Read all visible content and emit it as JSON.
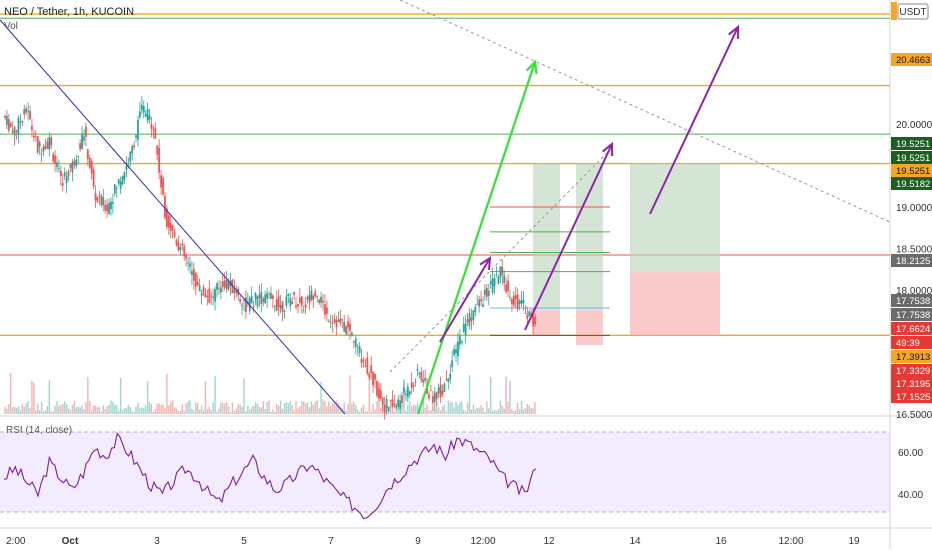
{
  "header": {
    "symbol_title": "NEO / Tether, 1h, KUCOIN",
    "volume_label": "Vol"
  },
  "rsi": {
    "label": "RSI (14, close)"
  },
  "colors": {
    "up": "#26a69a",
    "down": "#ef5350",
    "rsi_line": "#7b1fa2",
    "rsi_band": "#e9dcff",
    "blue_trend": "#2b2bd6",
    "orange_level": "#f5a623",
    "green_arrow": "#33e233",
    "purple_arrow": "#8e24aa"
  },
  "chart_data": [
    {
      "type": "candlestick",
      "title": "NEO / Tether, 1h, KUCOIN",
      "quote_currency": "USDT",
      "ylim": [
        16.5,
        21.5
      ],
      "y_ticks": [
        16.5,
        17.0,
        17.5,
        18.0,
        18.5,
        19.0,
        19.5,
        20.0,
        20.5,
        21.0
      ],
      "y_tick_labels": [
        "16.5000",
        "",
        "",
        "18.0000",
        "18.5000",
        "19.0000",
        "",
        "20.0000",
        "",
        ""
      ],
      "x_tick_labels": [
        "2:00",
        "Oct",
        "3",
        "5",
        "7",
        "9",
        "12:00",
        "12",
        "14",
        "16",
        "12:00",
        "19"
      ],
      "last_price": 17.6624,
      "countdown": "49:39",
      "price_labels": [
        {
          "value": 20.4663,
          "text": "20.4663",
          "kind": "orange"
        },
        {
          "value": 19.5251,
          "text": "19.5251",
          "kind": "dark-green"
        },
        {
          "value": 19.5251,
          "text": "19.5251",
          "kind": "dark-green"
        },
        {
          "value": 19.5251,
          "text": "19.5251",
          "kind": "orange"
        },
        {
          "value": 19.5182,
          "text": "19.5182",
          "kind": "dark-green"
        },
        {
          "value": 18.2125,
          "text": "18.2125",
          "kind": "gray"
        },
        {
          "value": 17.7538,
          "text": "17.7538",
          "kind": "gray"
        },
        {
          "value": 17.7538,
          "text": "17.7538",
          "kind": "gray"
        },
        {
          "value": 17.6624,
          "text": "17.6624",
          "kind": "red"
        },
        {
          "value": 17.6624,
          "text": "49:39",
          "kind": "red"
        },
        {
          "value": 17.3913,
          "text": "17.3913",
          "kind": "orange"
        },
        {
          "value": 17.3329,
          "text": "17.3329",
          "kind": "red"
        },
        {
          "value": 17.3195,
          "text": "17.3195",
          "kind": "red"
        },
        {
          "value": 17.1525,
          "text": "17.1525",
          "kind": "red"
        }
      ],
      "horizontal_levels": [
        {
          "value": 21.33,
          "kind": "orange"
        },
        {
          "value": 21.28,
          "kind": "green"
        },
        {
          "value": 20.4663,
          "kind": "orange"
        },
        {
          "value": 19.88,
          "kind": "green"
        },
        {
          "value": 19.5251,
          "kind": "orange"
        },
        {
          "value": 18.42,
          "kind": "red"
        },
        {
          "value": 17.45,
          "kind": "orange"
        }
      ],
      "price_series_approx": [
        20.1,
        19.9,
        20.2,
        19.7,
        19.8,
        19.3,
        19.5,
        19.9,
        19.1,
        19.0,
        19.3,
        19.6,
        20.2,
        20.0,
        18.9,
        18.6,
        18.3,
        18.0,
        17.9,
        18.1,
        18.0,
        17.8,
        17.9,
        17.9,
        17.8,
        17.9,
        17.8,
        18.0,
        17.7,
        17.6,
        17.5,
        17.2,
        16.9,
        16.6,
        16.6,
        16.8,
        17.0,
        16.7,
        16.8,
        17.2,
        17.6,
        17.8,
        18.0,
        18.2,
        17.9,
        17.8,
        17.6
      ]
    },
    {
      "type": "line",
      "title": "RSI (14, close)",
      "ylim": [
        25,
        75
      ],
      "y_tick_labels": [
        "60.00",
        "40.00"
      ],
      "band": [
        30,
        70
      ],
      "values_approx": [
        48,
        52,
        46,
        40,
        55,
        48,
        42,
        50,
        62,
        58,
        66,
        60,
        52,
        44,
        40,
        46,
        52,
        48,
        41,
        36,
        44,
        50,
        56,
        48,
        42,
        45,
        50,
        54,
        49,
        43,
        38,
        34,
        30,
        36,
        44,
        49,
        55,
        59,
        63,
        58,
        66,
        64,
        60,
        56,
        48,
        44,
        40,
        52
      ]
    }
  ]
}
